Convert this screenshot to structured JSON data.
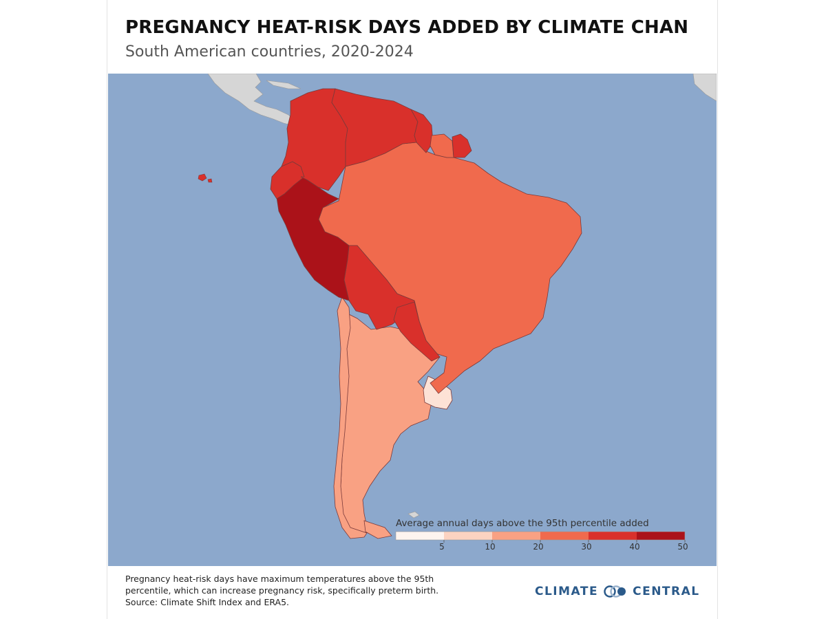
{
  "title": "PREGNANCY HEAT-RISK DAYS ADDED BY CLIMATE CHAN",
  "subtitle": "South American countries, 2020-2024",
  "legend": {
    "title": "Average annual days above the 95th percentile added",
    "ticks": [
      "5",
      "10",
      "20",
      "30",
      "40",
      "50"
    ],
    "bins": [
      {
        "min": 0,
        "max": 5,
        "color": "#fdf4ef"
      },
      {
        "min": 5,
        "max": 10,
        "color": "#fcd3c1"
      },
      {
        "min": 10,
        "max": 20,
        "color": "#f9a183"
      },
      {
        "min": 20,
        "max": 30,
        "color": "#f06a4d"
      },
      {
        "min": 30,
        "max": 40,
        "color": "#d9302b"
      },
      {
        "min": 40,
        "max": 50,
        "color": "#ab1219"
      }
    ]
  },
  "colors": {
    "ocean": "#8ca8cc",
    "land_other": "#d6d6d6",
    "border": "#7a3a3a"
  },
  "footer": {
    "line1": "Pregnancy heat-risk days have maximum temperatures above the 95th",
    "line2": "percentile, which can increase pregnancy risk, specifically preterm birth.",
    "line3": "Source: Climate Shift Index and ERA5."
  },
  "brand": {
    "left": "CLIMATE",
    "right": "CENTRAL"
  }
}
